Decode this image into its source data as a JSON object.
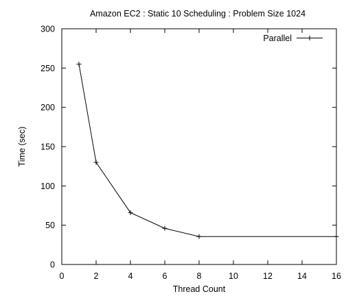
{
  "chart_data": {
    "type": "line",
    "title": "Amazon EC2 : Static 10 Scheduling : Problem Size 1024",
    "xlabel": "Thread Count",
    "ylabel": "Time (sec)",
    "xlim": [
      0,
      16
    ],
    "ylim": [
      0,
      300
    ],
    "x_ticks": [
      "0",
      "2",
      "4",
      "6",
      "8",
      "10",
      "12",
      "14",
      "16"
    ],
    "y_ticks": [
      "0",
      "50",
      "100",
      "150",
      "200",
      "250",
      "300"
    ],
    "grid": false,
    "legend_position": "top-right",
    "series": [
      {
        "name": "Parallel",
        "marker": "plus",
        "color": "#000000",
        "x": [
          1,
          2,
          4,
          6,
          8,
          16
        ],
        "y": [
          255,
          130,
          66,
          46,
          35.5,
          35.5
        ]
      }
    ]
  }
}
